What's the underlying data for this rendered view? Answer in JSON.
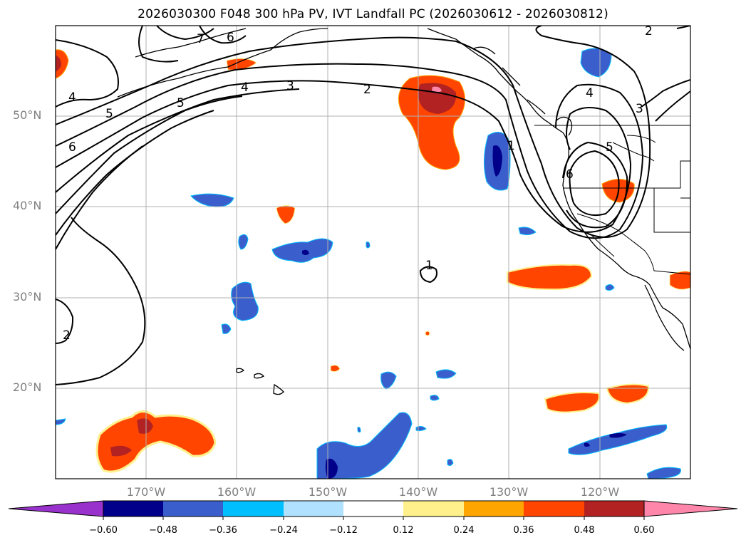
{
  "title": "2026030300 F048 300 hPa PV, IVT Landfall PC (2026030612 - 2026030812)",
  "map": {
    "lat_labels": [
      "50°N",
      "40°N",
      "30°N",
      "20°N"
    ],
    "lon_labels": [
      "170°W",
      "160°W",
      "150°W",
      "140°W",
      "130°W",
      "120°W"
    ],
    "contour_labels": [
      "7",
      "6",
      "4",
      "5",
      "4",
      "3",
      "2",
      "5",
      "6",
      "2",
      "4",
      "3",
      "1",
      "5",
      "6",
      "1",
      "2"
    ]
  },
  "colorbar": {
    "tick_labels": [
      "−0.60",
      "−0.48",
      "−0.36",
      "−0.24",
      "−0.12",
      "0.12",
      "0.24",
      "0.36",
      "0.48",
      "0.60"
    ],
    "colors": [
      "#9932cc",
      "#00008b",
      "#3a5fcd",
      "#00bfff",
      "#b0e2ff",
      "#ffffff",
      "#fff08c",
      "#ffa500",
      "#ff4500",
      "#b22222",
      "#ff86ab"
    ]
  }
}
